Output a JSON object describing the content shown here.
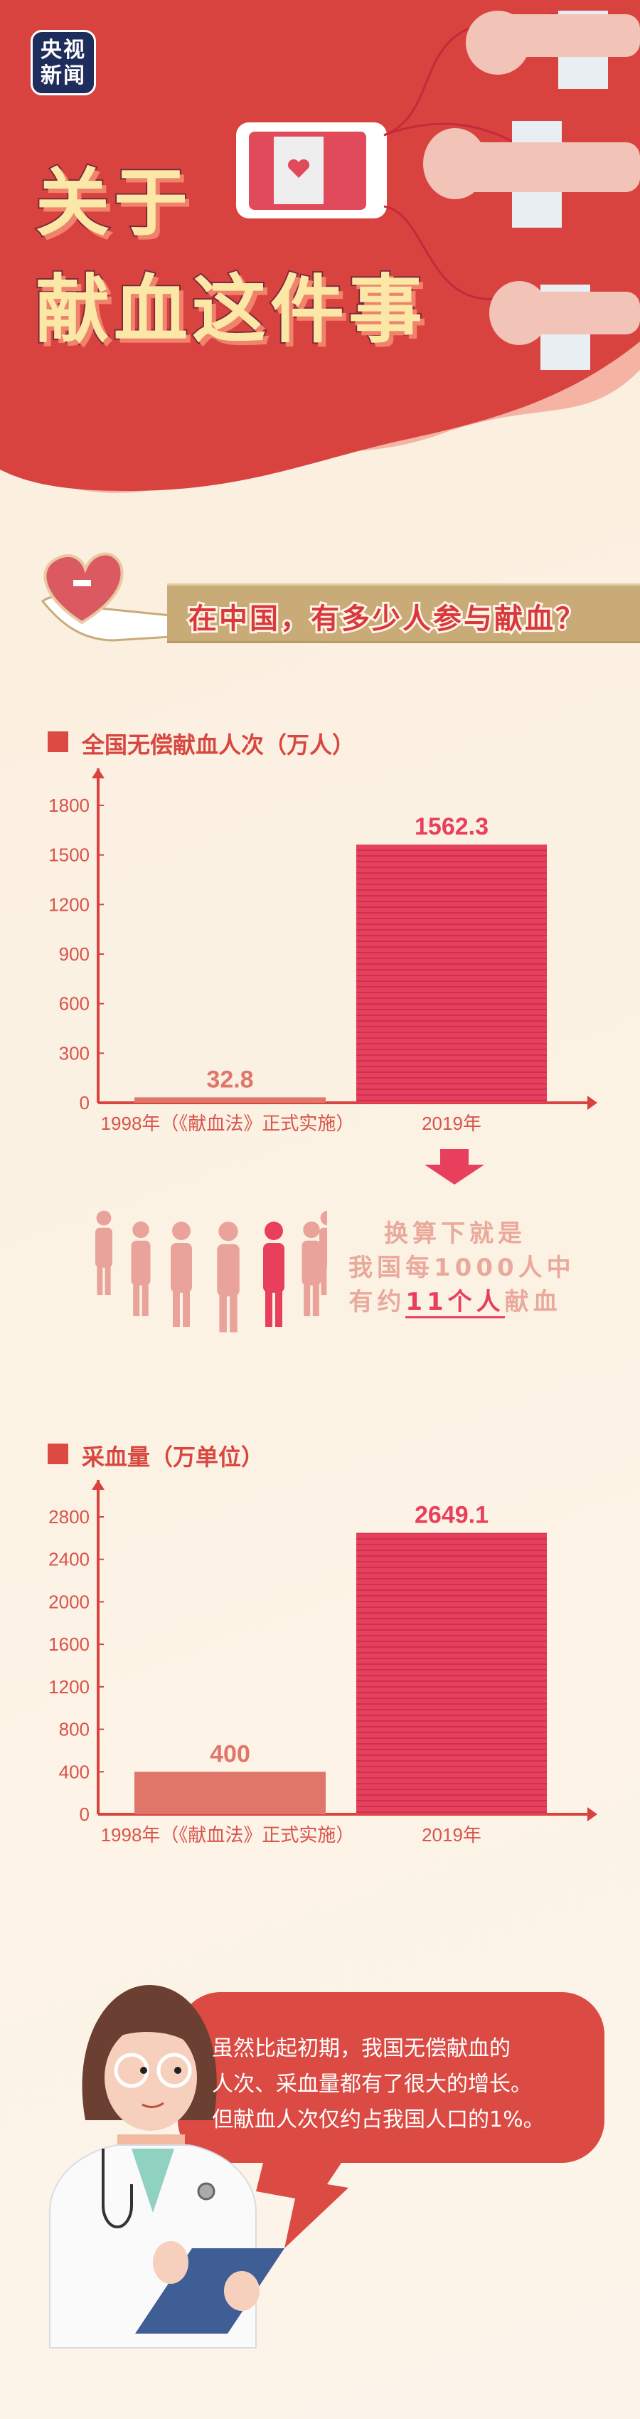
{
  "header": {
    "logo": [
      "央视",
      "新闻"
    ],
    "title_line1": "关于",
    "title_line2": "献血这件事"
  },
  "section1": {
    "number": "一",
    "question": "在中国，有多少人参与献血？"
  },
  "conversion": {
    "line1": "换算下就是",
    "line2": "我国每1000人中",
    "line3_pre": "有约",
    "line3_highlight": "11个人",
    "line3_post": "献血"
  },
  "colors": {
    "accent": "#d9433f",
    "bar_2019": "#e8405c",
    "bar_1998": "#e0766a"
  },
  "chart_data": [
    {
      "type": "bar",
      "title": "全国无偿献血人次（万人）",
      "categories": [
        "1998年（《献血法》正式实施）",
        "2019年"
      ],
      "values": [
        32.8,
        1562.3
      ],
      "value_labels": [
        "32.8",
        "1562.3"
      ],
      "yticks": [
        "0",
        "300",
        "600",
        "900",
        "1200",
        "1500",
        "1800"
      ],
      "ylim": [
        0,
        1800
      ],
      "grid": false
    },
    {
      "type": "bar",
      "title": "采血量（万单位）",
      "categories": [
        "1998年（《献血法》正式实施）",
        "2019年"
      ],
      "values": [
        400,
        2649.1
      ],
      "value_labels": [
        "400",
        "2649.1"
      ],
      "yticks": [
        "0",
        "400",
        "800",
        "1200",
        "1600",
        "2000",
        "2400",
        "2800"
      ],
      "ylim": [
        0,
        2800
      ],
      "grid": false
    }
  ],
  "doctor_bubble": {
    "lines": [
      "虽然比起初期，我国无偿献血的",
      "人次、采血量都有了很大的增长。",
      "但献血人次仅约占我国人口的1%。"
    ]
  }
}
